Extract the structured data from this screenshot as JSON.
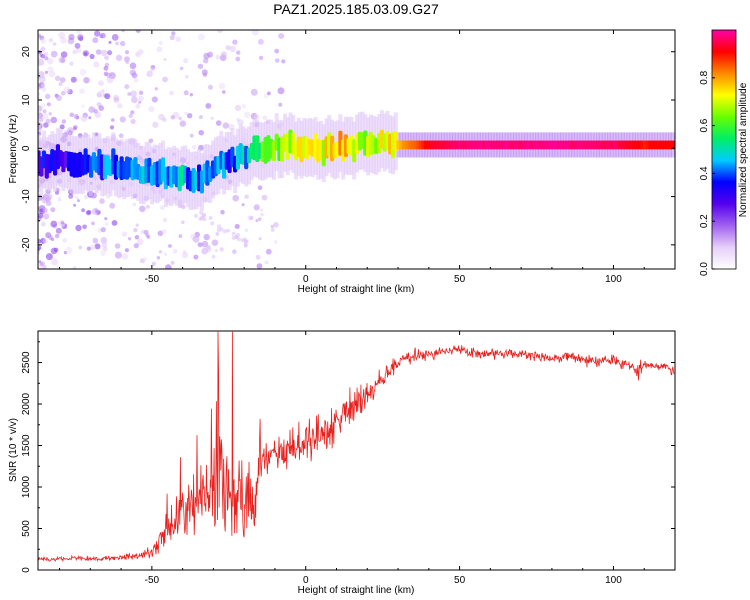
{
  "title": "PAZ1.2025.185.03.09.G27",
  "colors": {
    "snr_line": "#e8211e",
    "colormap": [
      "#ffffff",
      "#e6cff9",
      "#a160f0",
      "#5500ee",
      "#0000ff",
      "#00ccff",
      "#00ee66",
      "#66ff00",
      "#ffff00",
      "#ff8800",
      "#ff0000",
      "#ff00aa"
    ]
  },
  "chart_data": [
    {
      "type": "heatmap",
      "title": "PAZ1.2025.185.03.09.G27",
      "xlabel": "Height of straight line (km)",
      "ylabel": "Frequency (Hz)",
      "xlim": [
        -87,
        120
      ],
      "ylim": [
        -25,
        24.5
      ],
      "xticks": [
        -50,
        0,
        50,
        100
      ],
      "yticks": [
        -20,
        -10,
        0,
        10,
        20
      ],
      "ridge": [
        {
          "x": -85,
          "y": -3.5,
          "v": 0.3
        },
        {
          "x": -80,
          "y": -2.5,
          "v": 0.3
        },
        {
          "x": -75,
          "y": -3.5,
          "v": 0.32
        },
        {
          "x": -70,
          "y": -3.0,
          "v": 0.35
        },
        {
          "x": -65,
          "y": -3.5,
          "v": 0.38
        },
        {
          "x": -60,
          "y": -3.8,
          "v": 0.4
        },
        {
          "x": -55,
          "y": -4.5,
          "v": 0.42
        },
        {
          "x": -50,
          "y": -5.0,
          "v": 0.44
        },
        {
          "x": -45,
          "y": -5.5,
          "v": 0.45
        },
        {
          "x": -40,
          "y": -6.0,
          "v": 0.45
        },
        {
          "x": -35,
          "y": -6.5,
          "v": 0.42
        },
        {
          "x": -30,
          "y": -4.5,
          "v": 0.4
        },
        {
          "x": -25,
          "y": -3.0,
          "v": 0.4
        },
        {
          "x": -20,
          "y": -1.5,
          "v": 0.45
        },
        {
          "x": -15,
          "y": -0.5,
          "v": 0.55
        },
        {
          "x": -10,
          "y": 0.0,
          "v": 0.62
        },
        {
          "x": -5,
          "y": 0.5,
          "v": 0.7
        },
        {
          "x": 0,
          "y": 0.2,
          "v": 0.75
        },
        {
          "x": 5,
          "y": 0.0,
          "v": 0.72
        },
        {
          "x": 10,
          "y": 0.2,
          "v": 0.8
        },
        {
          "x": 15,
          "y": 0.5,
          "v": 0.7
        },
        {
          "x": 20,
          "y": 0.7,
          "v": 0.65
        },
        {
          "x": 25,
          "y": 0.7,
          "v": 0.7
        },
        {
          "x": 30,
          "y": 0.7,
          "v": 0.78
        },
        {
          "x": 35,
          "y": 0.7,
          "v": 0.85
        },
        {
          "x": 40,
          "y": 0.7,
          "v": 0.92
        },
        {
          "x": 50,
          "y": 0.7,
          "v": 0.97
        },
        {
          "x": 60,
          "y": 0.7,
          "v": 0.98
        },
        {
          "x": 70,
          "y": 0.7,
          "v": 0.97
        },
        {
          "x": 80,
          "y": 0.7,
          "v": 0.98
        },
        {
          "x": 90,
          "y": 0.7,
          "v": 0.97
        },
        {
          "x": 100,
          "y": 0.7,
          "v": 0.96
        },
        {
          "x": 110,
          "y": 0.7,
          "v": 0.9
        },
        {
          "x": 120,
          "y": 0.7,
          "v": 0.92
        }
      ],
      "colorbar": {
        "label": "Normalized spectral amplitude",
        "ticks": [
          "0.0",
          "0.2",
          "0.4",
          "0.6",
          "0.8"
        ],
        "tick_values": [
          0.0,
          0.2,
          0.4,
          0.6,
          0.8
        ],
        "range": [
          0,
          1
        ]
      }
    },
    {
      "type": "line",
      "xlabel": "Height of straight line (km)",
      "ylabel": "SNR (10 * v/v)",
      "xlim": [
        -87,
        120
      ],
      "ylim": [
        0,
        2880
      ],
      "xticks": [
        -50,
        0,
        50,
        100
      ],
      "yticks": [
        0,
        500,
        1000,
        1500,
        2000,
        2500
      ],
      "series": [
        {
          "x": [
            -87,
            -80,
            -70,
            -60,
            -55,
            -50,
            -47,
            -45,
            -40,
            -35,
            -30,
            -25,
            -20,
            -17,
            -15,
            -10,
            -5,
            0,
            5,
            10,
            15,
            20,
            25,
            30,
            35,
            40,
            45,
            50,
            55,
            60,
            65,
            70,
            75,
            80,
            85,
            90,
            95,
            100,
            105,
            108,
            110,
            115,
            120
          ],
          "y": [
            130,
            135,
            140,
            150,
            170,
            200,
            380,
            500,
            700,
            800,
            1050,
            1000,
            900,
            800,
            1300,
            1400,
            1450,
            1550,
            1650,
            1800,
            1950,
            2100,
            2300,
            2500,
            2580,
            2600,
            2650,
            2650,
            2620,
            2600,
            2610,
            2600,
            2580,
            2550,
            2570,
            2540,
            2500,
            2520,
            2480,
            2380,
            2480,
            2460,
            2400
          ],
          "noise": [
            40,
            40,
            45,
            45,
            60,
            100,
            250,
            300,
            500,
            600,
            900,
            900,
            800,
            700,
            350,
            350,
            350,
            350,
            350,
            300,
            280,
            250,
            200,
            150,
            120,
            100,
            90,
            90,
            90,
            90,
            90,
            90,
            90,
            90,
            90,
            90,
            100,
            100,
            100,
            150,
            100,
            100,
            120
          ]
        }
      ]
    }
  ]
}
